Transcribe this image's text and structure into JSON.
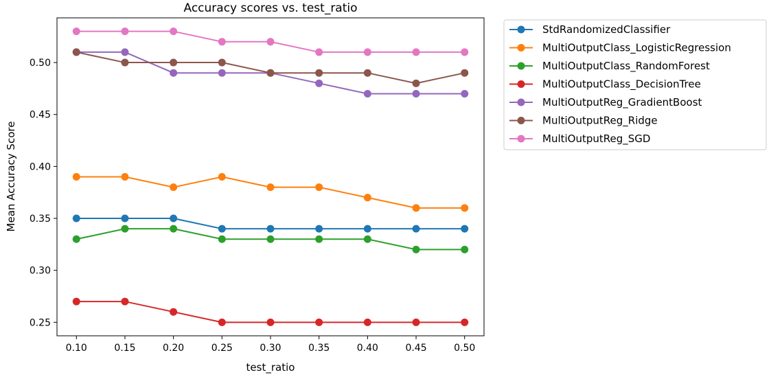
{
  "chart_data": {
    "type": "line",
    "title": "Accuracy scores vs. test_ratio",
    "xlabel": "test_ratio",
    "ylabel": "Mean Accuracy Score",
    "x": [
      0.1,
      0.15,
      0.2,
      0.25,
      0.3,
      0.35,
      0.4,
      0.45,
      0.5
    ],
    "x_tick_labels": [
      "0.10",
      "0.15",
      "0.20",
      "0.25",
      "0.30",
      "0.35",
      "0.40",
      "0.45",
      "0.50"
    ],
    "y_ticks": [
      0.25,
      0.3,
      0.35,
      0.4,
      0.45,
      0.5
    ],
    "y_tick_labels": [
      "0.25",
      "0.30",
      "0.35",
      "0.40",
      "0.45",
      "0.50"
    ],
    "xlim": [
      0.08,
      0.52
    ],
    "ylim": [
      0.237,
      0.543
    ],
    "grid": false,
    "legend_position": "outside-top-right",
    "series": [
      {
        "name": "StdRandomizedClassifier",
        "color": "#1f77b4",
        "values": [
          0.35,
          0.35,
          0.35,
          0.34,
          0.34,
          0.34,
          0.34,
          0.34,
          0.34
        ]
      },
      {
        "name": "MultiOutputClass_LogisticRegression",
        "color": "#ff7f0e",
        "values": [
          0.39,
          0.39,
          0.38,
          0.39,
          0.38,
          0.38,
          0.37,
          0.36,
          0.36
        ]
      },
      {
        "name": "MultiOutputClass_RandomForest",
        "color": "#2ca02c",
        "values": [
          0.33,
          0.34,
          0.34,
          0.33,
          0.33,
          0.33,
          0.33,
          0.32,
          0.32
        ]
      },
      {
        "name": "MultiOutputClass_DecisionTree",
        "color": "#d62728",
        "values": [
          0.27,
          0.27,
          0.26,
          0.25,
          0.25,
          0.25,
          0.25,
          0.25,
          0.25
        ]
      },
      {
        "name": "MultiOutputReg_GradientBoost",
        "color": "#9467bd",
        "values": [
          0.51,
          0.51,
          0.49,
          0.49,
          0.49,
          0.48,
          0.47,
          0.47,
          0.47
        ]
      },
      {
        "name": "MultiOutputReg_Ridge",
        "color": "#8c564b",
        "values": [
          0.51,
          0.5,
          0.5,
          0.5,
          0.49,
          0.49,
          0.49,
          0.48,
          0.49
        ]
      },
      {
        "name": "MultiOutputReg_SGD",
        "color": "#e377c2",
        "values": [
          0.53,
          0.53,
          0.53,
          0.52,
          0.52,
          0.51,
          0.51,
          0.51,
          0.51
        ]
      }
    ]
  }
}
